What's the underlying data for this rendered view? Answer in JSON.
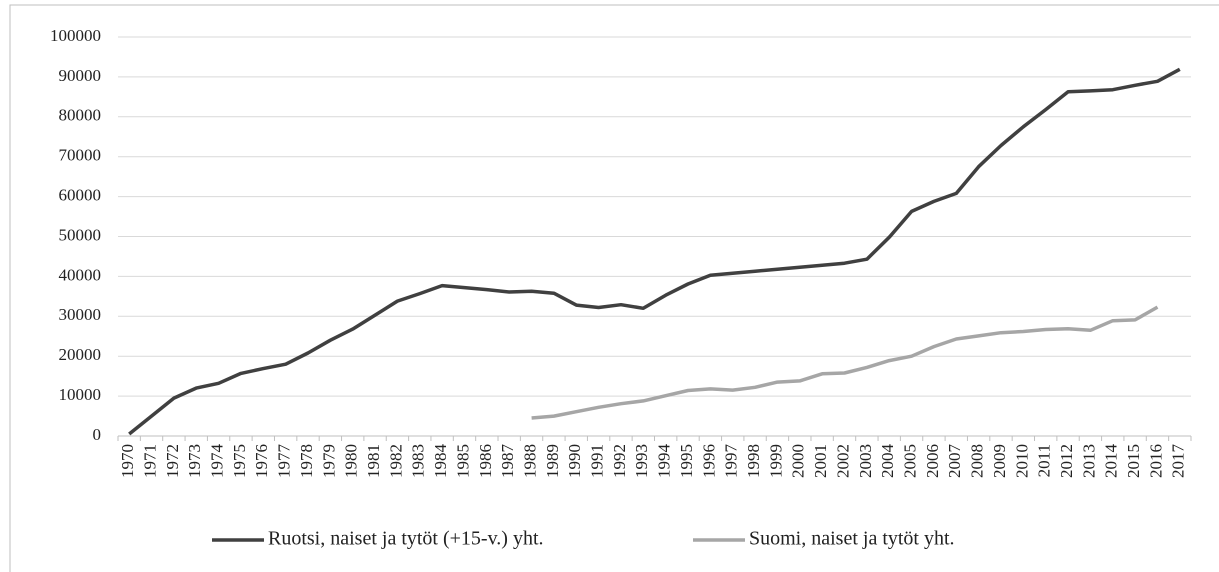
{
  "chart_data": {
    "type": "line",
    "categories": [
      "1970",
      "1971",
      "1972",
      "1973",
      "1974",
      "1975",
      "1976",
      "1977",
      "1978",
      "1979",
      "1980",
      "1981",
      "1982",
      "1983",
      "1984",
      "1985",
      "1986",
      "1987",
      "1988",
      "1989",
      "1990",
      "1991",
      "1992",
      "1993",
      "1994",
      "1995",
      "1996",
      "1997",
      "1998",
      "1999",
      "2000",
      "2001",
      "2002",
      "2003",
      "2004",
      "2005",
      "2006",
      "2007",
      "2008",
      "2009",
      "2010",
      "2011",
      "2012",
      "2013",
      "2014",
      "2015",
      "2016",
      "2017"
    ],
    "series": [
      {
        "name": "Ruotsi, naiset ja tytöt (+15-v.) yht.",
        "color": "#404040",
        "values": [
          500,
          5000,
          9500,
          12000,
          13200,
          15700,
          16900,
          18000,
          20800,
          24000,
          26800,
          30300,
          33800,
          35700,
          37700,
          37200,
          36700,
          36100,
          36300,
          35800,
          32800,
          32200,
          32900,
          32000,
          35300,
          38100,
          40300,
          40800,
          41300,
          41800,
          42300,
          42800,
          43300,
          44300,
          49800,
          56300,
          58800,
          60800,
          67500,
          72800,
          77500,
          81800,
          86300,
          86500,
          86800,
          87900,
          88900,
          91900
        ]
      },
      {
        "name": "Suomi, naiset ja tytöt yht.",
        "color": "#a6a6a6",
        "values": [
          null,
          null,
          null,
          null,
          null,
          null,
          null,
          null,
          null,
          null,
          null,
          null,
          null,
          null,
          null,
          null,
          null,
          null,
          4500,
          5000,
          6100,
          7200,
          8100,
          8800,
          10100,
          11400,
          11800,
          11500,
          12200,
          13500,
          13800,
          15600,
          15800,
          17200,
          18900,
          20000,
          22400,
          24300,
          25100,
          25900,
          26200,
          26700,
          26900,
          26500,
          28900,
          29100,
          32300,
          null
        ]
      }
    ],
    "ylim": [
      0,
      100000
    ],
    "yticks": [
      0,
      10000,
      20000,
      30000,
      40000,
      50000,
      60000,
      70000,
      80000,
      90000,
      100000
    ],
    "grid": true,
    "legend": "bottom"
  }
}
